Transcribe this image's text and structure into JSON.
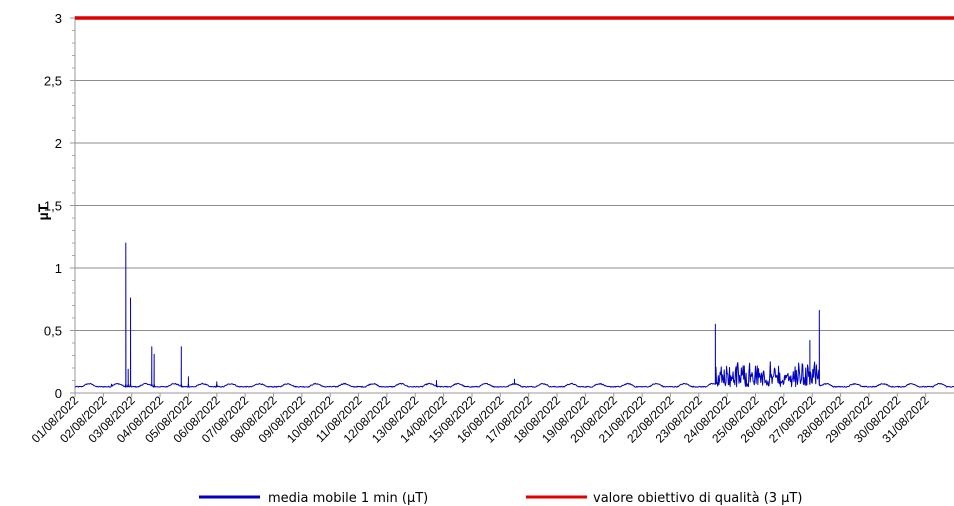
{
  "chart_data": {
    "type": "line",
    "title": "",
    "xlabel": "",
    "ylabel": "µT",
    "ylim": [
      0,
      3
    ],
    "yticks": [
      0,
      0.5,
      1,
      1.5,
      2,
      2.5,
      3
    ],
    "ytick_labels": [
      "0",
      "0,5",
      "1",
      "1,5",
      "2",
      "2,5",
      "3"
    ],
    "xlim": [
      "2022-08-01",
      "2022-09-01"
    ],
    "x_tick_labels": [
      "01/08/2022",
      "02/08/2022",
      "03/08/2022",
      "04/08/2022",
      "05/08/2022",
      "06/08/2022",
      "07/08/2022",
      "08/08/2022",
      "09/08/2022",
      "10/08/2022",
      "11/08/2022",
      "12/08/2022",
      "13/08/2022",
      "14/08/2022",
      "15/08/2022",
      "16/08/2022",
      "17/08/2022",
      "18/08/2022",
      "19/08/2022",
      "20/08/2022",
      "21/08/2022",
      "22/08/2022",
      "23/08/2022",
      "24/08/2022",
      "25/08/2022",
      "26/08/2022",
      "27/08/2022",
      "28/08/2022",
      "29/08/2022",
      "30/08/2022",
      "31/08/2022"
    ],
    "grid": true,
    "legend_position": "bottom",
    "series": [
      {
        "name": "media mobile 1 min (µT)",
        "color": "#0000c0",
        "baseline": 0.05,
        "daily_bump": 0.03,
        "spikes": [
          {
            "x": "2022-08-02T07:00",
            "y": 0.07
          },
          {
            "x": "2022-08-02T19:00",
            "y": 1.2
          },
          {
            "x": "2022-08-02T21:00",
            "y": 0.19
          },
          {
            "x": "2022-08-02T23:00",
            "y": 0.76
          },
          {
            "x": "2022-08-03T17:00",
            "y": 0.37
          },
          {
            "x": "2022-08-03T19:00",
            "y": 0.31
          },
          {
            "x": "2022-08-04T18:00",
            "y": 0.37
          },
          {
            "x": "2022-08-05T00:00",
            "y": 0.13
          },
          {
            "x": "2022-08-06T00:00",
            "y": 0.09
          },
          {
            "x": "2022-08-13T18:00",
            "y": 0.1
          },
          {
            "x": "2022-08-16T12:00",
            "y": 0.11
          },
          {
            "x": "2022-08-23T14:00",
            "y": 0.55
          },
          {
            "x": "2022-08-26T22:00",
            "y": 0.42
          },
          {
            "x": "2022-08-27T06:00",
            "y": 0.66
          }
        ],
        "active_period": {
          "start": "2022-08-23T14:00",
          "end": "2022-08-27T06:00",
          "typical_max": 0.25
        }
      },
      {
        "name": "valore obiettivo di qualità (3 µT)",
        "color": "#e00000",
        "value": 3
      }
    ]
  }
}
